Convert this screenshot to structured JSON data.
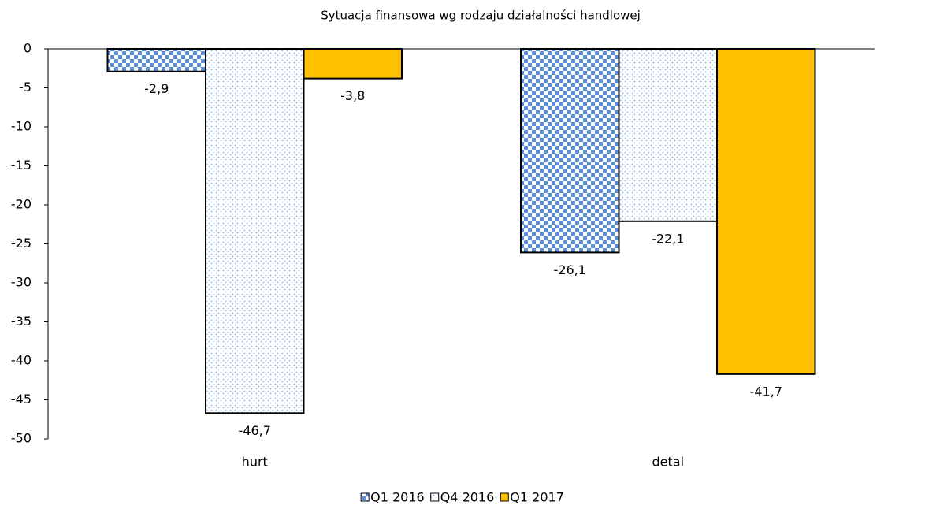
{
  "chart_data": {
    "type": "bar",
    "title": "Sytuacja finansowa wg rodzaju działalności handlowej",
    "categories": [
      "hurt",
      "detal"
    ],
    "series": [
      {
        "name": "Q1 2016",
        "color": "#5b8fd6",
        "pattern": "checker",
        "values": [
          -2.9,
          -26.1
        ],
        "value_labels": [
          "-2,9",
          "-26,1"
        ]
      },
      {
        "name": "Q4 2016",
        "color": "#8db4e2",
        "pattern": "dots",
        "values": [
          -46.7,
          -22.1
        ],
        "value_labels": [
          "-46,7",
          "-22,1"
        ]
      },
      {
        "name": "Q1 2017",
        "color": "#ffc000",
        "pattern": "solid",
        "values": [
          -3.8,
          -41.7
        ],
        "value_labels": [
          "-3,8",
          "-41,7"
        ]
      }
    ],
    "ylim": [
      -50,
      0
    ],
    "yticks": [
      0,
      -5,
      -10,
      -15,
      -20,
      -25,
      -30,
      -35,
      -40,
      -45,
      -50
    ],
    "grid": false,
    "legend": "bottom"
  }
}
